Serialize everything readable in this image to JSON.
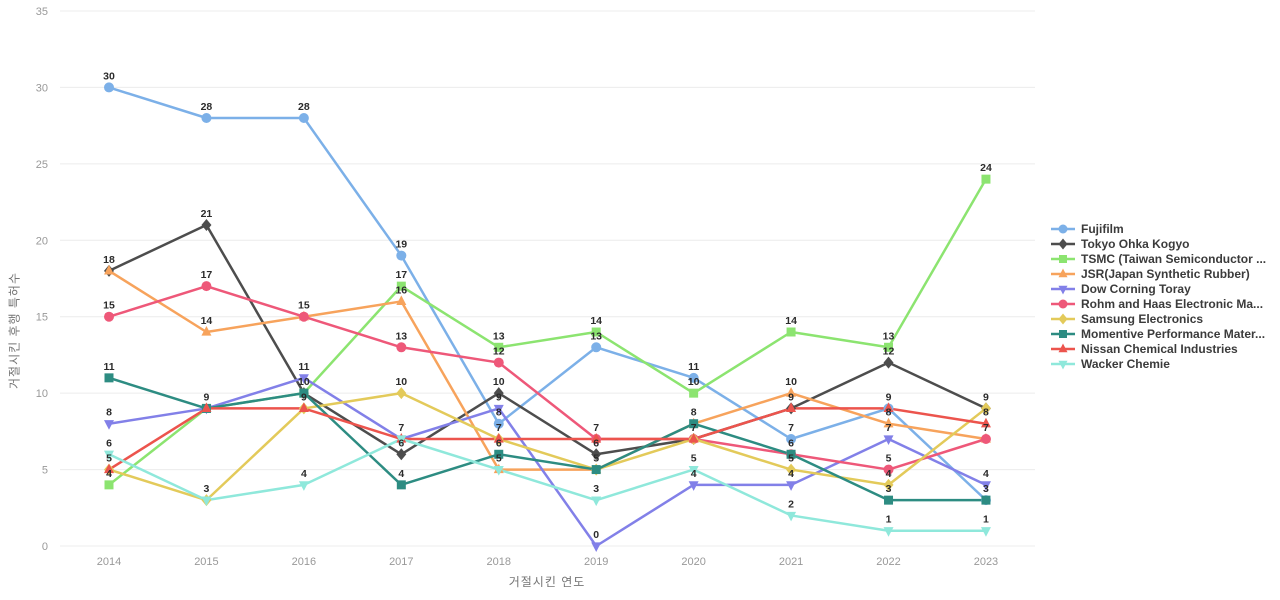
{
  "chart_data": {
    "type": "line",
    "title": "",
    "xlabel": "거절시킨 연도",
    "ylabel": "거절시킨 후행 특허수",
    "x": [
      2014,
      2015,
      2016,
      2017,
      2018,
      2019,
      2020,
      2021,
      2022,
      2023
    ],
    "ylim": [
      0,
      35
    ],
    "yticks": [
      0,
      5,
      10,
      15,
      20,
      25,
      30,
      35
    ],
    "grid": "horizontal",
    "legend_position": "right",
    "point_labels": "shown above every marker; overlapping equal values share one label",
    "series": [
      {
        "name": "Fujifilm",
        "color": "#7cb0e8",
        "marker": "circle",
        "values": [
          30,
          28,
          28,
          19,
          8,
          13,
          11,
          7,
          9,
          3
        ]
      },
      {
        "name": "Tokyo Ohka Kogyo",
        "color": "#4d4d4d",
        "marker": "diamond",
        "values": [
          18,
          21,
          10,
          6,
          10,
          6,
          7,
          9,
          12,
          9
        ]
      },
      {
        "name": "TSMC (Taiwan Semiconductor ...",
        "color": "#8ce470",
        "marker": "square",
        "values": [
          4,
          9,
          10,
          17,
          13,
          14,
          10,
          14,
          13,
          24
        ]
      },
      {
        "name": "JSR(Japan Synthetic Rubber)",
        "color": "#f7a35c",
        "marker": "triangle-up",
        "values": [
          18,
          14,
          15,
          16,
          5,
          5,
          8,
          10,
          8,
          7
        ]
      },
      {
        "name": "Dow Corning Toray",
        "color": "#8280e8",
        "marker": "triangle-down",
        "values": [
          8,
          9,
          11,
          7,
          9,
          0,
          4,
          4,
          7,
          4
        ]
      },
      {
        "name": "Rohm and Haas Electronic Ma...",
        "color": "#ee5879",
        "marker": "circle",
        "values": [
          15,
          17,
          15,
          13,
          12,
          7,
          7,
          6,
          5,
          7
        ]
      },
      {
        "name": "Samsung Electronics",
        "color": "#e3ca5a",
        "marker": "diamond",
        "values": [
          5,
          3,
          9,
          10,
          7,
          5,
          7,
          5,
          4,
          9
        ]
      },
      {
        "name": "Momentive Performance Mater...",
        "color": "#2d8c82",
        "marker": "square",
        "values": [
          11,
          9,
          10,
          4,
          6,
          5,
          8,
          6,
          3,
          3
        ]
      },
      {
        "name": "Nissan Chemical Industries",
        "color": "#ec544d",
        "marker": "triangle-up",
        "values": [
          5,
          9,
          9,
          7,
          7,
          7,
          7,
          9,
          9,
          8
        ]
      },
      {
        "name": "Wacker Chemie",
        "color": "#8fe8db",
        "marker": "triangle-down",
        "values": [
          6,
          3,
          4,
          7,
          5,
          3,
          5,
          2,
          1,
          1
        ]
      }
    ],
    "colors": {
      "grid": "#ececec",
      "tick_label": "#999999",
      "axis_title": "#757575",
      "point_label": "#2b2b2b",
      "legend_text": "#3b3b3b"
    }
  }
}
